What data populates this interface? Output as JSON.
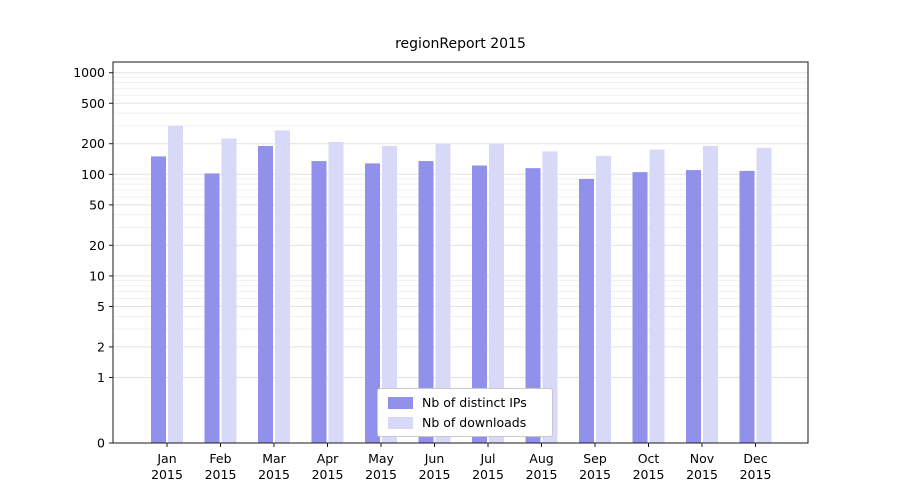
{
  "chart_data": {
    "type": "bar",
    "title": "regionReport 2015",
    "categories": [
      "Jan",
      "Feb",
      "Mar",
      "Apr",
      "May",
      "Jun",
      "Jul",
      "Aug",
      "Sep",
      "Oct",
      "Nov",
      "Dec"
    ],
    "category_year": "2015",
    "series": [
      {
        "name": "Nb of distinct IPs",
        "color": "#9191eb",
        "values": [
          150,
          102,
          190,
          135,
          128,
          135,
          122,
          115,
          90,
          105,
          110,
          108
        ]
      },
      {
        "name": "Nb of downloads",
        "color": "#d8d8f8",
        "values": [
          300,
          225,
          270,
          208,
          190,
          200,
          200,
          168,
          152,
          175,
          190,
          182
        ]
      }
    ],
    "yscale": "symlog",
    "yticks": [
      0,
      1,
      2,
      5,
      10,
      20,
      50,
      100,
      200,
      500,
      1000
    ],
    "ylim": [
      0,
      1200
    ],
    "xlabel": "",
    "ylabel": "",
    "grid": true,
    "legend_position": "lower center"
  }
}
